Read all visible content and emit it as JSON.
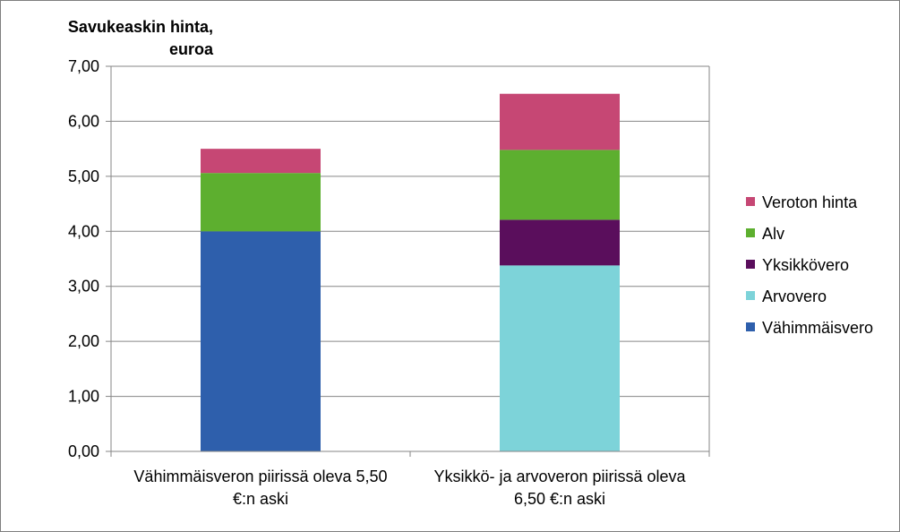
{
  "chart_data": {
    "type": "bar",
    "stacked": true,
    "title": "",
    "ylabel_lines": [
      "Savukeaskin hinta,",
      "euroa"
    ],
    "xlabel": "",
    "ylim": [
      0,
      7
    ],
    "ytick_step": 1,
    "ytick_labels": [
      "0,00",
      "1,00",
      "2,00",
      "3,00",
      "4,00",
      "5,00",
      "6,00",
      "7,00"
    ],
    "categories": [
      [
        "Vähimmäisveron piirissä oleva 5,50",
        "€:n aski"
      ],
      [
        "Yksikkö-   ja arvoveron piirissä oleva",
        "6,50 €:n aski"
      ]
    ],
    "grid": true,
    "legend_position": "right",
    "series": [
      {
        "name": "Vähimmäisvero",
        "color": "#2e5fac",
        "values": [
          4.0,
          0
        ]
      },
      {
        "name": "Arvovero",
        "color": "#7dd3d9",
        "values": [
          0,
          3.38
        ]
      },
      {
        "name": "Yksikkövero",
        "color": "#5a0e5c",
        "values": [
          0,
          0.83
        ]
      },
      {
        "name": "Alv",
        "color": "#5daf2f",
        "values": [
          1.06,
          1.27
        ]
      },
      {
        "name": "Veroton hinta",
        "color": "#c64774",
        "values": [
          0.44,
          1.02
        ]
      }
    ]
  }
}
